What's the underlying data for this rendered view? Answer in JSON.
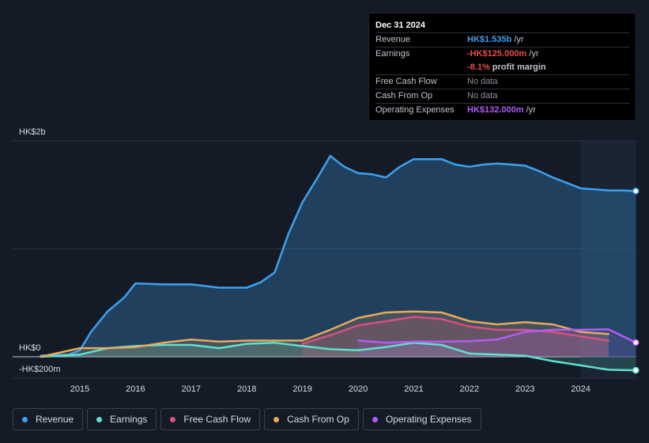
{
  "chart_data": {
    "type": "area",
    "currency": "HK$",
    "ylim_millions": [
      -200,
      2000
    ],
    "axis_labels": {
      "top": "HK$2b",
      "zero": "HK$0",
      "bottom": "-HK$200m"
    },
    "x_ticks": [
      "2015",
      "2016",
      "2017",
      "2018",
      "2019",
      "2020",
      "2021",
      "2022",
      "2023",
      "2024"
    ],
    "forecast_start_year": 2024.0,
    "series": [
      {
        "name": "Revenue",
        "color": "#3da1f0",
        "unit": "HK$m",
        "x": [
          2014.3,
          2014.8,
          2015.0,
          2015.2,
          2015.5,
          2015.8,
          2016.0,
          2016.5,
          2017.0,
          2017.5,
          2018.0,
          2018.25,
          2018.5,
          2018.75,
          2019.0,
          2019.25,
          2019.5,
          2019.75,
          2020.0,
          2020.25,
          2020.5,
          2020.75,
          2021.0,
          2021.25,
          2021.5,
          2021.75,
          2022.0,
          2022.25,
          2022.5,
          2022.75,
          2023.0,
          2023.25,
          2023.5,
          2023.75,
          2024.0,
          2024.25,
          2024.5,
          2024.75,
          2024.99
        ],
        "values": [
          10,
          20,
          60,
          230,
          420,
          550,
          680,
          670,
          670,
          640,
          640,
          690,
          780,
          1140,
          1430,
          1640,
          1860,
          1760,
          1700,
          1690,
          1660,
          1760,
          1830,
          1830,
          1830,
          1780,
          1760,
          1780,
          1790,
          1780,
          1770,
          1720,
          1660,
          1610,
          1560,
          1550,
          1540,
          1540,
          1535
        ]
      },
      {
        "name": "Earnings",
        "color": "#5ee0cf",
        "unit": "HK$m",
        "x": [
          2014.3,
          2015.0,
          2015.5,
          2016.0,
          2016.5,
          2017.0,
          2017.5,
          2018.0,
          2018.5,
          2019.0,
          2019.5,
          2020.0,
          2020.5,
          2021.0,
          2021.5,
          2022.0,
          2022.5,
          2023.0,
          2023.5,
          2024.0,
          2024.5,
          2024.99
        ],
        "values": [
          0,
          20,
          80,
          100,
          110,
          110,
          80,
          120,
          130,
          100,
          70,
          60,
          90,
          130,
          110,
          30,
          20,
          10,
          -40,
          -80,
          -120,
          -125
        ]
      },
      {
        "name": "Free Cash Flow",
        "color": "#d9507e",
        "unit": "HK$m",
        "x": [
          2019.0,
          2019.5,
          2020.0,
          2020.5,
          2021.0,
          2021.5,
          2022.0,
          2022.5,
          2023.0,
          2023.5,
          2024.0,
          2024.5
        ],
        "values": [
          120,
          200,
          290,
          330,
          370,
          350,
          280,
          250,
          250,
          230,
          190,
          150
        ]
      },
      {
        "name": "Cash From Op",
        "color": "#e8a95c",
        "unit": "HK$m",
        "x": [
          2014.3,
          2015.0,
          2015.5,
          2016.0,
          2016.5,
          2017.0,
          2017.5,
          2018.0,
          2018.5,
          2019.0,
          2019.5,
          2020.0,
          2020.5,
          2021.0,
          2021.5,
          2022.0,
          2022.5,
          2023.0,
          2023.5,
          2024.0,
          2024.5
        ],
        "values": [
          0,
          80,
          80,
          90,
          130,
          160,
          140,
          150,
          150,
          150,
          250,
          360,
          410,
          420,
          410,
          330,
          300,
          320,
          300,
          230,
          210
        ]
      },
      {
        "name": "Operating Expenses",
        "color": "#b35cf5",
        "unit": "HK$m",
        "x": [
          2020.0,
          2020.5,
          2021.0,
          2021.5,
          2022.0,
          2022.5,
          2023.0,
          2023.5,
          2024.0,
          2024.5,
          2024.99
        ],
        "values": [
          150,
          130,
          140,
          140,
          145,
          160,
          230,
          250,
          250,
          255,
          132
        ]
      }
    ]
  },
  "tooltip": {
    "date": "Dec 31 2024",
    "rows": [
      {
        "label": "Revenue",
        "value": "HK$1.535b",
        "unit": " /yr"
      },
      {
        "label": "Earnings",
        "value": "-HK$125.000m",
        "unit": " /yr"
      },
      {
        "label": "",
        "value": "-8.1%",
        "unit": " profit margin"
      },
      {
        "label": "Free Cash Flow",
        "value": "No data",
        "unit": ""
      },
      {
        "label": "Cash From Op",
        "value": "No data",
        "unit": ""
      },
      {
        "label": "Operating Expenses",
        "value": "HK$132.000m",
        "unit": " /yr"
      }
    ]
  },
  "legend": [
    {
      "label": "Revenue",
      "color": "#3da1f0"
    },
    {
      "label": "Earnings",
      "color": "#5ee0cf"
    },
    {
      "label": "Free Cash Flow",
      "color": "#d9507e"
    },
    {
      "label": "Cash From Op",
      "color": "#e8a95c"
    },
    {
      "label": "Operating Expenses",
      "color": "#b35cf5"
    }
  ]
}
